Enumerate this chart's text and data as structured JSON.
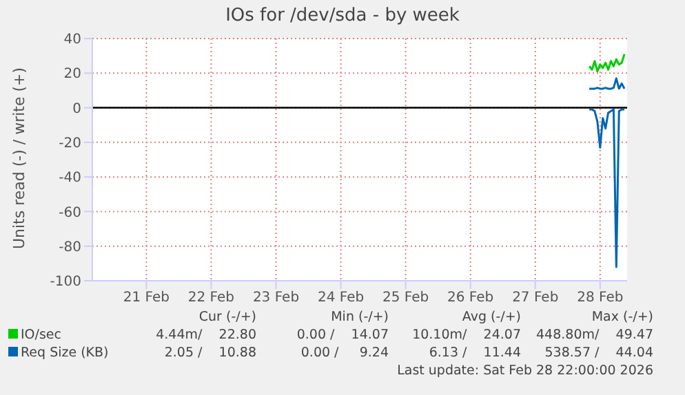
{
  "chart_data": {
    "type": "line",
    "title": "IOs for /dev/sda - by week",
    "ylabel": "Units read (-) / write (+)",
    "x": [
      "2026-02-28T08:00",
      "2026-02-28T09:00",
      "2026-02-28T10:00",
      "2026-02-28T11:00",
      "2026-02-28T12:00",
      "2026-02-28T13:00",
      "2026-02-28T14:00",
      "2026-02-28T15:00",
      "2026-02-28T16:00",
      "2026-02-28T17:00",
      "2026-02-28T18:00",
      "2026-02-28T19:00",
      "2026-02-28T20:00",
      "2026-02-28T21:00"
    ],
    "series": [
      {
        "name": "IO/sec",
        "color": "#00cc00",
        "values": [
          24,
          22,
          27,
          21,
          25,
          23,
          26,
          22,
          27,
          24,
          28,
          25,
          26,
          31
        ]
      },
      {
        "name": "Req Size (KB)",
        "color": "#0066b3",
        "values": [
          11,
          11,
          11,
          11.5,
          11,
          11,
          11.5,
          11,
          11,
          11.5,
          17,
          11,
          14,
          11
        ]
      },
      {
        "color": "#0066b3",
        "values": [
          -1,
          -1,
          -2,
          -8,
          -23,
          -6,
          -12,
          -3,
          -2,
          -1,
          -92,
          -2,
          -1,
          -1
        ]
      }
    ],
    "xlim": [
      "2026-02-20T16:00",
      "2026-02-28T22:00"
    ],
    "xticks": [
      {
        "value": "2026-02-21T12:00",
        "label": "21 Feb"
      },
      {
        "value": "2026-02-22T12:00",
        "label": "22 Feb"
      },
      {
        "value": "2026-02-23T12:00",
        "label": "23 Feb"
      },
      {
        "value": "2026-02-24T12:00",
        "label": "24 Feb"
      },
      {
        "value": "2026-02-25T12:00",
        "label": "25 Feb"
      },
      {
        "value": "2026-02-26T12:00",
        "label": "26 Feb"
      },
      {
        "value": "2026-02-27T12:00",
        "label": "27 Feb"
      },
      {
        "value": "2026-02-28T12:00",
        "label": "28 Feb"
      }
    ],
    "ylim": [
      -100,
      40
    ],
    "yticks": [
      -100,
      -80,
      -60,
      -40,
      -20,
      0,
      20,
      40
    ],
    "grid": true,
    "legend": "bottom left",
    "marker": "none",
    "line_style": "solid",
    "ref_lines": [
      {
        "axis": "y",
        "value": 0,
        "color": "#000000"
      }
    ],
    "annotations": [
      "Cur (-/+)",
      "Min (-/+)",
      "Avg (-/+)",
      "Max (-/+)",
      "4.44m/    22.80",
      "0.00 /    14.07",
      "10.10m/    24.07",
      "448.80m/    49.47",
      "2.05 /    10.88",
      "0.00 /     9.24",
      "6.13 /    11.44",
      "538.57 /    44.04",
      "Last update: Sat Feb 28 22:00:00 2026"
    ]
  }
}
